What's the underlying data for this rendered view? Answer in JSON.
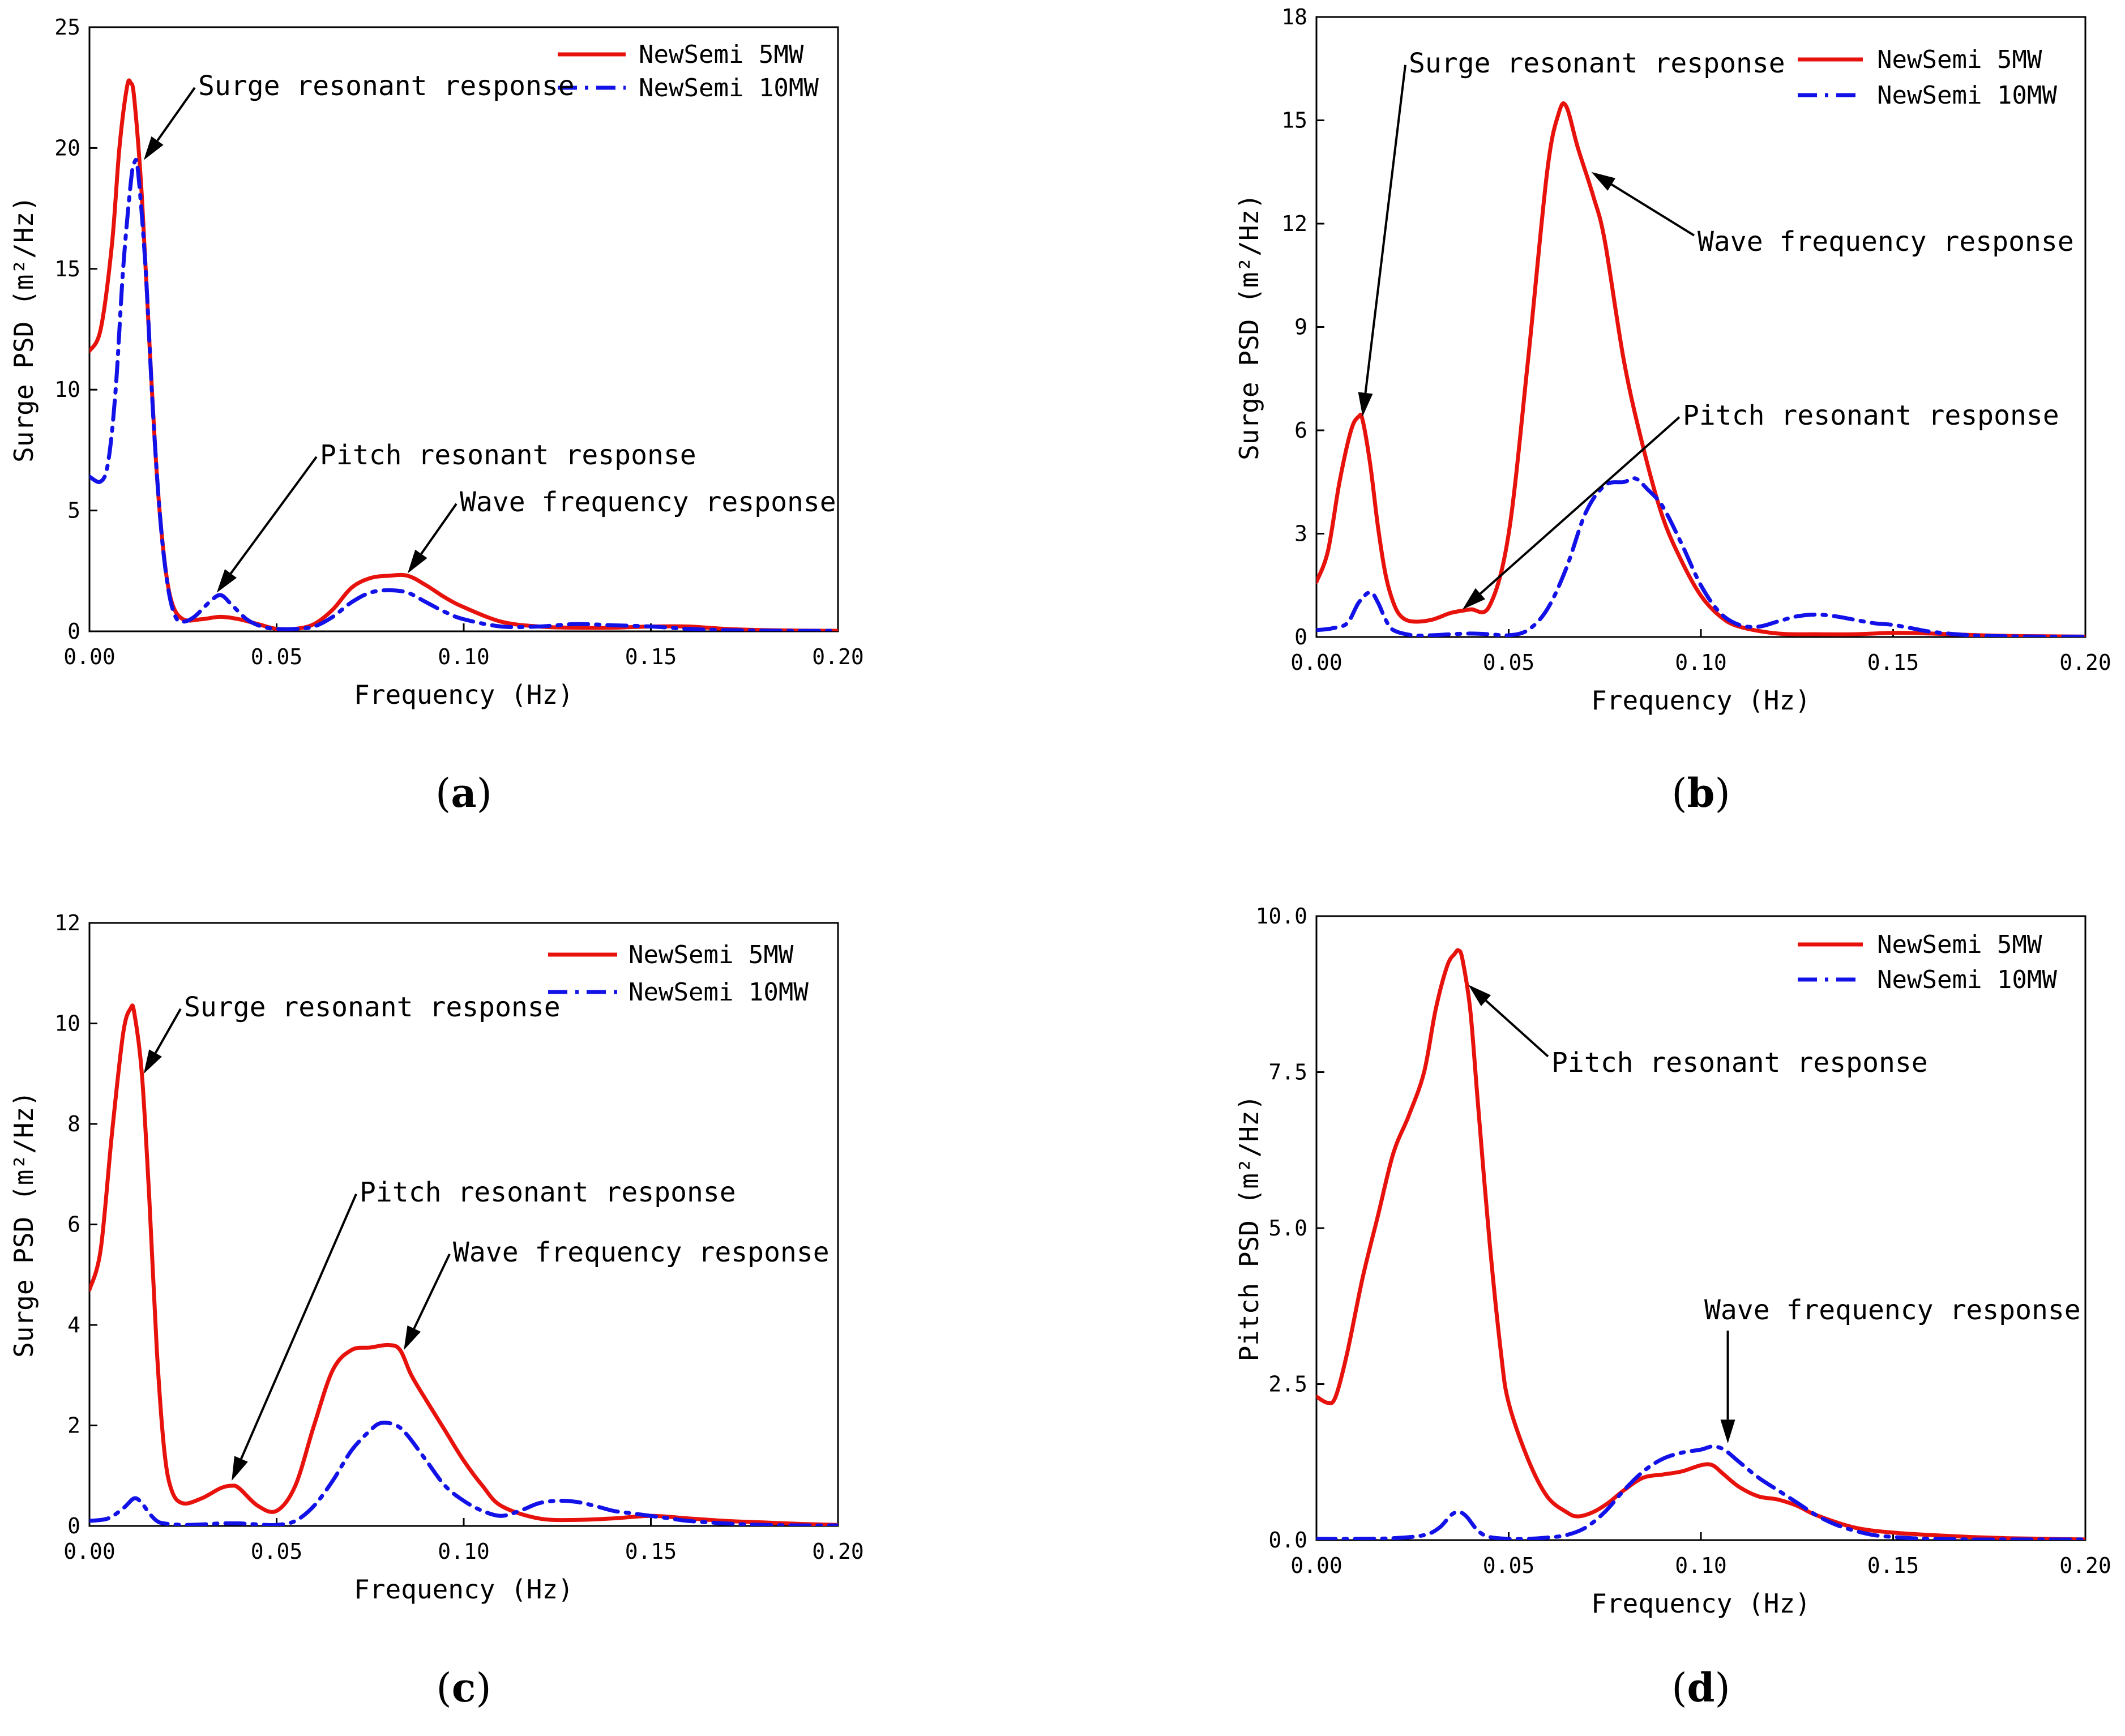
{
  "chart_data": [
    {
      "type": "line",
      "panel_label": "a",
      "xlabel": "Frequency (Hz)",
      "ylabel": "Surge PSD (m²/Hz)",
      "xlim": [
        0,
        0.2
      ],
      "ylim": [
        0,
        25
      ],
      "xticks": [
        0,
        0.05,
        0.1,
        0.15,
        0.2
      ],
      "xtick_labels": [
        "0.00",
        "0.05",
        "0.10",
        "0.15",
        "0.20"
      ],
      "yticks": [
        0,
        5,
        10,
        15,
        20,
        25
      ],
      "ytick_labels": [
        "0",
        "5",
        "10",
        "15",
        "20",
        "25"
      ],
      "series": [
        {
          "name": "NewSemi 5MW",
          "color": "#e8120c",
          "style": "solid",
          "x": [
            0,
            0.003,
            0.006,
            0.008,
            0.01,
            0.011,
            0.012,
            0.014,
            0.016,
            0.018,
            0.02,
            0.022,
            0.025,
            0.03,
            0.035,
            0.04,
            0.045,
            0.05,
            0.055,
            0.06,
            0.065,
            0.07,
            0.075,
            0.08,
            0.085,
            0.09,
            0.095,
            0.1,
            0.11,
            0.12,
            0.13,
            0.14,
            0.15,
            0.16,
            0.17,
            0.18,
            0.19,
            0.2
          ],
          "y": [
            11.6,
            12.5,
            16.0,
            20.0,
            22.5,
            22.7,
            22.0,
            18.0,
            12.0,
            6.5,
            3.0,
            1.2,
            0.5,
            0.5,
            0.6,
            0.5,
            0.3,
            0.1,
            0.1,
            0.3,
            0.9,
            1.8,
            2.2,
            2.3,
            2.3,
            1.9,
            1.4,
            1.0,
            0.4,
            0.2,
            0.15,
            0.15,
            0.2,
            0.2,
            0.1,
            0.05,
            0.03,
            0.02
          ]
        },
        {
          "name": "NewSemi 10MW",
          "color": "#1212e8",
          "style": "dashdot",
          "x": [
            0,
            0.003,
            0.005,
            0.007,
            0.009,
            0.011,
            0.012,
            0.013,
            0.015,
            0.017,
            0.019,
            0.021,
            0.023,
            0.025,
            0.028,
            0.032,
            0.035,
            0.038,
            0.042,
            0.046,
            0.05,
            0.055,
            0.06,
            0.065,
            0.07,
            0.075,
            0.08,
            0.085,
            0.09,
            0.095,
            0.1,
            0.11,
            0.12,
            0.13,
            0.14,
            0.15,
            0.16,
            0.17,
            0.18,
            0.19,
            0.2
          ],
          "y": [
            6.4,
            6.2,
            7.0,
            10.0,
            15.0,
            18.5,
            19.4,
            19.0,
            15.0,
            9.0,
            4.5,
            1.8,
            0.6,
            0.4,
            0.6,
            1.2,
            1.5,
            1.1,
            0.5,
            0.2,
            0.1,
            0.1,
            0.2,
            0.6,
            1.2,
            1.6,
            1.7,
            1.6,
            1.2,
            0.8,
            0.5,
            0.2,
            0.2,
            0.3,
            0.25,
            0.2,
            0.1,
            0.05,
            0.03,
            0.02,
            0.02
          ]
        }
      ],
      "annotations": [
        {
          "text": "Surge resonant response",
          "point": [
            0.0145,
            19.5
          ]
        },
        {
          "text": "Pitch resonant response",
          "point": [
            0.034,
            1.6
          ]
        },
        {
          "text": "Wave frequency response",
          "point": [
            0.085,
            2.4
          ]
        }
      ],
      "legend": "top-right"
    },
    {
      "type": "line",
      "panel_label": "b",
      "xlabel": "Frequency (Hz)",
      "ylabel": "Surge PSD (m²/Hz)",
      "xlim": [
        0,
        0.2
      ],
      "ylim": [
        0,
        18
      ],
      "xticks": [
        0,
        0.05,
        0.1,
        0.15,
        0.2
      ],
      "xtick_labels": [
        "0.00",
        "0.05",
        "0.10",
        "0.15",
        "0.20"
      ],
      "yticks": [
        0,
        3,
        6,
        9,
        12,
        15,
        18
      ],
      "ytick_labels": [
        "0",
        "3",
        "6",
        "9",
        "12",
        "15",
        "18"
      ],
      "series": [
        {
          "name": "NewSemi 5MW",
          "color": "#e8120c",
          "style": "solid",
          "x": [
            0,
            0.003,
            0.006,
            0.009,
            0.011,
            0.012,
            0.014,
            0.016,
            0.018,
            0.02,
            0.022,
            0.025,
            0.03,
            0.035,
            0.04,
            0.045,
            0.05,
            0.055,
            0.06,
            0.063,
            0.065,
            0.068,
            0.072,
            0.075,
            0.08,
            0.085,
            0.09,
            0.095,
            0.1,
            0.105,
            0.11,
            0.12,
            0.13,
            0.14,
            0.15,
            0.16,
            0.17,
            0.18,
            0.19,
            0.2
          ],
          "y": [
            1.6,
            2.5,
            4.5,
            6.0,
            6.4,
            6.3,
            5.0,
            3.2,
            1.8,
            1.0,
            0.6,
            0.45,
            0.5,
            0.7,
            0.8,
            0.9,
            3.0,
            8.0,
            13.5,
            15.2,
            15.4,
            14.2,
            12.8,
            11.5,
            8.0,
            5.5,
            3.5,
            2.2,
            1.2,
            0.6,
            0.3,
            0.1,
            0.08,
            0.08,
            0.12,
            0.1,
            0.06,
            0.03,
            0.02,
            0.01
          ]
        },
        {
          "name": "NewSemi 10MW",
          "color": "#1212e8",
          "style": "dashdot",
          "x": [
            0,
            0.004,
            0.008,
            0.011,
            0.014,
            0.016,
            0.018,
            0.02,
            0.025,
            0.03,
            0.035,
            0.04,
            0.045,
            0.05,
            0.055,
            0.06,
            0.065,
            0.07,
            0.075,
            0.08,
            0.083,
            0.086,
            0.09,
            0.095,
            0.1,
            0.105,
            0.11,
            0.115,
            0.12,
            0.125,
            0.13,
            0.135,
            0.14,
            0.145,
            0.15,
            0.155,
            0.16,
            0.17,
            0.18,
            0.19,
            0.2
          ],
          "y": [
            0.2,
            0.25,
            0.4,
            1.0,
            1.3,
            1.0,
            0.5,
            0.2,
            0.05,
            0.05,
            0.08,
            0.1,
            0.08,
            0.05,
            0.2,
            0.8,
            2.0,
            3.6,
            4.4,
            4.5,
            4.6,
            4.3,
            3.8,
            2.7,
            1.5,
            0.7,
            0.35,
            0.3,
            0.45,
            0.6,
            0.65,
            0.6,
            0.5,
            0.4,
            0.35,
            0.25,
            0.15,
            0.05,
            0.02,
            0.01,
            0.01
          ]
        }
      ],
      "annotations": [
        {
          "text": "Surge resonant response",
          "point": [
            0.012,
            6.4
          ]
        },
        {
          "text": "Wave frequency response",
          "point": [
            0.0715,
            13.5
          ]
        },
        {
          "text": "Pitch resonant response",
          "point": [
            0.038,
            0.8
          ]
        }
      ],
      "legend": "top-right"
    },
    {
      "type": "line",
      "panel_label": "c",
      "xlabel": "Frequency (Hz)",
      "ylabel": "Surge PSD (m²/Hz)",
      "xlim": [
        0,
        0.2
      ],
      "ylim": [
        0,
        12
      ],
      "xticks": [
        0,
        0.05,
        0.1,
        0.15,
        0.2
      ],
      "xtick_labels": [
        "0.00",
        "0.05",
        "0.10",
        "0.15",
        "0.20"
      ],
      "yticks": [
        0,
        2,
        4,
        6,
        8,
        10,
        12
      ],
      "ytick_labels": [
        "0",
        "2",
        "4",
        "6",
        "8",
        "10",
        "12"
      ],
      "series": [
        {
          "name": "NewSemi 5MW",
          "color": "#e8120c",
          "style": "solid",
          "x": [
            0,
            0.003,
            0.006,
            0.009,
            0.011,
            0.012,
            0.014,
            0.016,
            0.018,
            0.02,
            0.022,
            0.025,
            0.03,
            0.035,
            0.038,
            0.04,
            0.045,
            0.05,
            0.055,
            0.06,
            0.065,
            0.07,
            0.075,
            0.08,
            0.083,
            0.086,
            0.09,
            0.095,
            0.1,
            0.105,
            0.11,
            0.12,
            0.13,
            0.14,
            0.15,
            0.16,
            0.17,
            0.18,
            0.19,
            0.2
          ],
          "y": [
            4.7,
            5.5,
            7.8,
            9.8,
            10.3,
            10.2,
            9.0,
            6.5,
            3.5,
            1.5,
            0.7,
            0.45,
            0.55,
            0.75,
            0.8,
            0.75,
            0.4,
            0.3,
            0.8,
            2.0,
            3.1,
            3.5,
            3.55,
            3.6,
            3.5,
            3.0,
            2.5,
            1.9,
            1.3,
            0.8,
            0.4,
            0.15,
            0.12,
            0.15,
            0.2,
            0.15,
            0.1,
            0.07,
            0.04,
            0.02
          ]
        },
        {
          "name": "NewSemi 10MW",
          "color": "#1212e8",
          "style": "dashdot",
          "x": [
            0,
            0.005,
            0.009,
            0.012,
            0.014,
            0.016,
            0.018,
            0.02,
            0.025,
            0.03,
            0.035,
            0.04,
            0.045,
            0.05,
            0.055,
            0.06,
            0.065,
            0.07,
            0.075,
            0.078,
            0.082,
            0.085,
            0.09,
            0.095,
            0.1,
            0.105,
            0.11,
            0.115,
            0.12,
            0.125,
            0.13,
            0.135,
            0.14,
            0.145,
            0.15,
            0.155,
            0.16,
            0.17,
            0.18,
            0.19,
            0.2
          ],
          "y": [
            0.1,
            0.15,
            0.35,
            0.55,
            0.45,
            0.25,
            0.1,
            0.05,
            0.02,
            0.03,
            0.05,
            0.05,
            0.03,
            0.02,
            0.1,
            0.4,
            0.9,
            1.5,
            1.9,
            2.05,
            2.0,
            1.8,
            1.3,
            0.8,
            0.5,
            0.3,
            0.2,
            0.3,
            0.45,
            0.5,
            0.48,
            0.4,
            0.3,
            0.25,
            0.2,
            0.15,
            0.1,
            0.05,
            0.02,
            0.01,
            0.01
          ]
        }
      ],
      "annotations": [
        {
          "text": "Surge resonant response",
          "point": [
            0.0145,
            9.0
          ]
        },
        {
          "text": "Pitch resonant response",
          "point": [
            0.038,
            0.9
          ]
        },
        {
          "text": "Wave frequency response",
          "point": [
            0.084,
            3.5
          ]
        }
      ],
      "legend": "top-right"
    },
    {
      "type": "line",
      "panel_label": "d",
      "xlabel": "Frequency (Hz)",
      "ylabel": "Pitch PSD (m²/Hz)",
      "xlim": [
        0,
        0.2
      ],
      "ylim": [
        0,
        10
      ],
      "xticks": [
        0,
        0.05,
        0.1,
        0.15,
        0.2
      ],
      "xtick_labels": [
        "0.00",
        "0.05",
        "0.10",
        "0.15",
        "0.20"
      ],
      "yticks": [
        0,
        2.5,
        5,
        7.5,
        10
      ],
      "ytick_labels": [
        "0.0",
        "2.5",
        "5.0",
        "7.5",
        "10.0"
      ],
      "series": [
        {
          "name": "NewSemi 5MW",
          "color": "#e8120c",
          "style": "solid",
          "x": [
            0,
            0.003,
            0.005,
            0.008,
            0.012,
            0.016,
            0.02,
            0.024,
            0.028,
            0.031,
            0.034,
            0.036,
            0.037,
            0.038,
            0.04,
            0.042,
            0.045,
            0.048,
            0.05,
            0.055,
            0.06,
            0.065,
            0.068,
            0.072,
            0.076,
            0.08,
            0.085,
            0.09,
            0.095,
            0.1,
            0.103,
            0.106,
            0.11,
            0.115,
            0.12,
            0.125,
            0.13,
            0.14,
            0.15,
            0.16,
            0.17,
            0.18,
            0.19,
            0.2
          ],
          "y": [
            2.3,
            2.2,
            2.3,
            3.0,
            4.2,
            5.2,
            6.2,
            6.8,
            7.5,
            8.5,
            9.2,
            9.4,
            9.45,
            9.3,
            8.5,
            7.0,
            4.8,
            3.0,
            2.2,
            1.3,
            0.7,
            0.45,
            0.38,
            0.45,
            0.6,
            0.8,
            1.0,
            1.05,
            1.1,
            1.2,
            1.2,
            1.05,
            0.85,
            0.7,
            0.65,
            0.55,
            0.4,
            0.2,
            0.12,
            0.08,
            0.05,
            0.03,
            0.02,
            0.01
          ]
        },
        {
          "name": "NewSemi 10MW",
          "color": "#1212e8",
          "style": "dashdot",
          "x": [
            0,
            0.01,
            0.02,
            0.028,
            0.032,
            0.035,
            0.037,
            0.039,
            0.042,
            0.045,
            0.05,
            0.055,
            0.06,
            0.065,
            0.07,
            0.075,
            0.08,
            0.085,
            0.09,
            0.095,
            0.1,
            0.103,
            0.106,
            0.11,
            0.115,
            0.12,
            0.125,
            0.13,
            0.135,
            0.14,
            0.145,
            0.15,
            0.155,
            0.16,
            0.17,
            0.18,
            0.19,
            0.2
          ],
          "y": [
            0.02,
            0.02,
            0.03,
            0.08,
            0.2,
            0.4,
            0.45,
            0.38,
            0.15,
            0.05,
            0.02,
            0.02,
            0.04,
            0.08,
            0.2,
            0.45,
            0.8,
            1.1,
            1.3,
            1.4,
            1.45,
            1.5,
            1.45,
            1.25,
            1.0,
            0.8,
            0.6,
            0.4,
            0.25,
            0.15,
            0.08,
            0.05,
            0.03,
            0.02,
            0.01,
            0.01,
            0.01,
            0.01
          ]
        }
      ],
      "annotations": [
        {
          "text": "Pitch resonant response",
          "point": [
            0.0395,
            8.9
          ]
        },
        {
          "text": "Wave frequency response",
          "point": [
            0.107,
            1.55
          ]
        }
      ],
      "legend": "top-right"
    }
  ]
}
